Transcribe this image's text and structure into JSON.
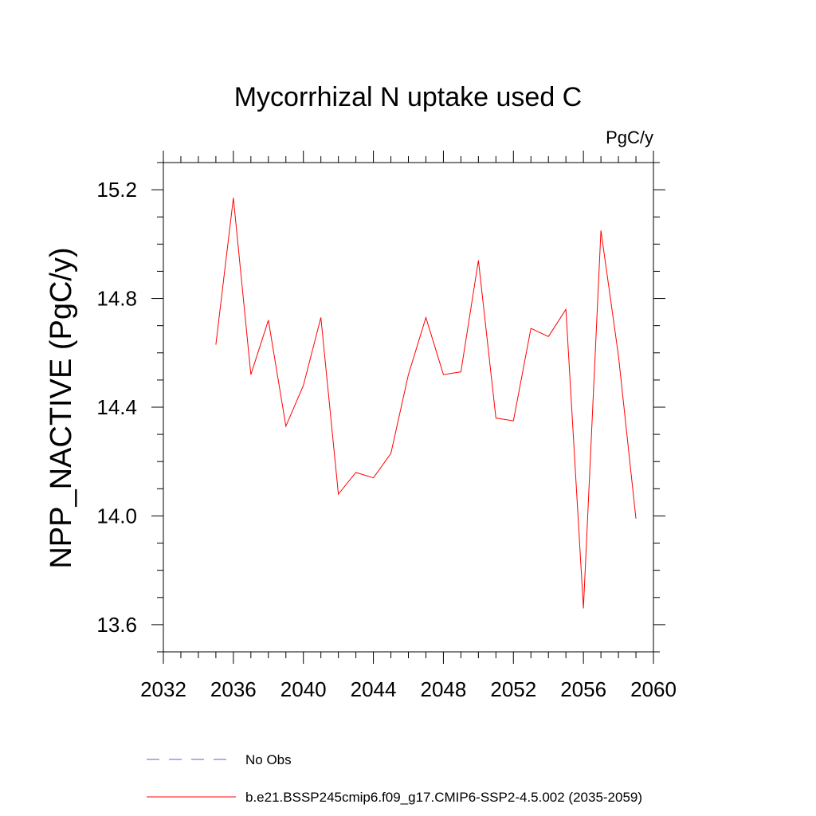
{
  "chart_data": {
    "type": "line",
    "title": "Mycorrhizal N uptake used C",
    "units_label": "PgC/y",
    "xlabel": "",
    "ylabel": "NPP_NACTIVE  (PgC/y)",
    "xlim": [
      2032,
      2060
    ],
    "ylim": [
      13.5,
      15.3
    ],
    "x_ticks": [
      2032,
      2036,
      2040,
      2044,
      2048,
      2052,
      2056,
      2060
    ],
    "x_tick_labels": [
      "2032",
      "2036",
      "2040",
      "2044",
      "2048",
      "2052",
      "2056",
      "2060"
    ],
    "x_minor_step": 1,
    "y_ticks": [
      13.6,
      14.0,
      14.4,
      14.8,
      15.2
    ],
    "y_tick_labels": [
      "13.6",
      "14.0",
      "14.4",
      "14.8",
      "15.2"
    ],
    "y_minor_step": 0.1,
    "grid": false,
    "legend_position": "bottom",
    "series": [
      {
        "name": "b.e21.BSSP245cmip6.f09_g17.CMIP6-SSP2-4.5.002 (2035-2059)",
        "color": "#ff0000",
        "style": "solid",
        "x": [
          2035,
          2036,
          2037,
          2038,
          2039,
          2040,
          2041,
          2042,
          2043,
          2044,
          2045,
          2046,
          2047,
          2048,
          2049,
          2050,
          2051,
          2052,
          2053,
          2054,
          2055,
          2056,
          2057,
          2058,
          2059
        ],
        "values": [
          14.63,
          15.17,
          14.52,
          14.72,
          14.33,
          14.48,
          14.73,
          14.08,
          14.16,
          14.14,
          14.23,
          14.52,
          14.73,
          14.52,
          14.53,
          14.94,
          14.36,
          14.35,
          14.69,
          14.66,
          14.76,
          13.66,
          15.05,
          14.59,
          13.99
        ]
      }
    ],
    "legend": [
      {
        "label": "No Obs",
        "color": "#6a5acd",
        "style": "dashed"
      },
      {
        "label": "b.e21.BSSP245cmip6.f09_g17.CMIP6-SSP2-4.5.002 (2035-2059)",
        "color": "#ff0000",
        "style": "solid"
      }
    ]
  }
}
